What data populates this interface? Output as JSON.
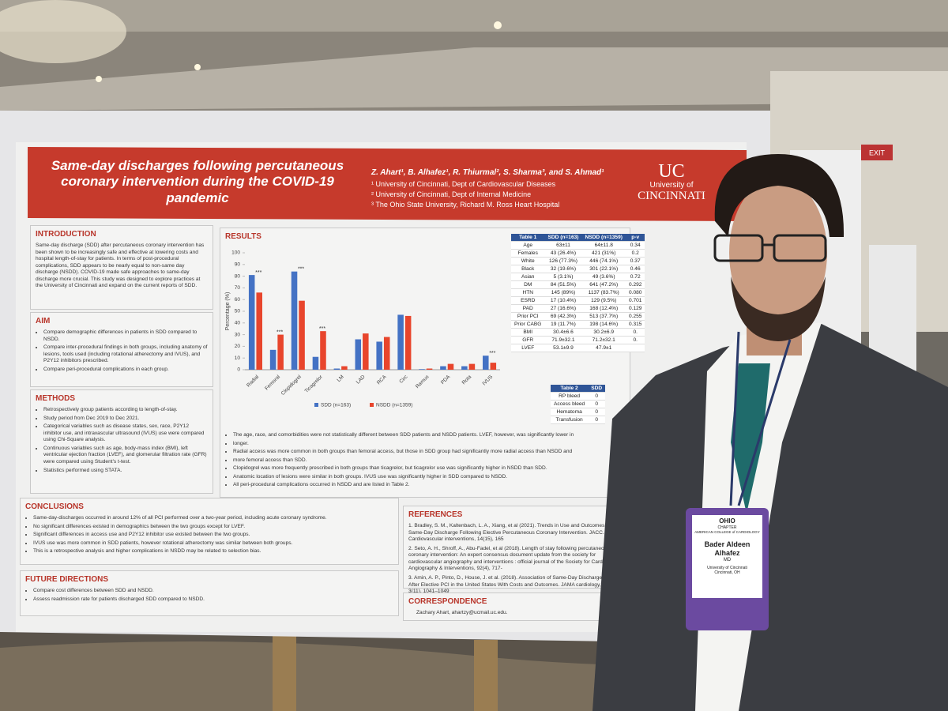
{
  "poster": {
    "header": {
      "title": "Same-day discharges following percutaneous coronary intervention during the COVID-19 pandemic",
      "authors": "Z. Ahart¹, B. Alhafez¹, R. Thiurmal², S. Sharma³, and S. Ahmad¹",
      "affiliations": [
        "¹ University of Cincinnati, Dept of Cardiovascular Diseases",
        "² University of Cincinnati, Dept of Internal Medicine",
        "³ The Ohio State University, Richard M. Ross Heart Hospital"
      ],
      "logo": {
        "mark": "UC",
        "line1": "University of",
        "line2": "CINCINNATI"
      }
    },
    "introduction": {
      "heading": "INTRODUCTION",
      "text": "Same-day discharge (SDD) after percutaneous coronary intervention has been shown to be increasingly safe and effective at lowering costs and hospital length-of-stay for patients. In terms of post-procedural complications, SDD appears to be nearly equal to non-same day discharge (NSDD). COVID-19 made safe approaches to same-day discharge more crucial. This study was designed to explore practices at the University of Cincinnati and expand on the current reports of SDD."
    },
    "aim": {
      "heading": "AIM",
      "items": [
        "Compare demographic differences in patients in SDD compared to NSDD.",
        "Compare inter-procedural findings in both groups, including anatomy of lesions, tools used (including rotational atherectomy and IVUS), and P2Y12 inhibitors prescribed.",
        "Compare peri-procedural complications in each group."
      ]
    },
    "methods": {
      "heading": "METHODS",
      "items": [
        "Retrospectively group patients according to length-of-stay.",
        "Study period from Dec 2019 to Dec 2021.",
        "Categorical variables such as disease states, sex, race, P2Y12 inhibitor use, and intravascular ultrasound (IVUS) use were compared using Chi-Square analysis.",
        "Continuous variables such as age, body-mass index (BMI), left ventricular ejection fraction (LVEF), and glomerular filtration rate (GFR) were compared using Student's t-test.",
        "Statistics performed using STATA."
      ]
    },
    "results": {
      "heading": "RESULTS",
      "chart": {
        "type": "bar",
        "y_label": "Percentage (%)",
        "categories": [
          "Radial",
          "Femoral",
          "Clopidogrel",
          "Ticagrelor",
          "LM",
          "LAD",
          "RCA",
          "Circ",
          "Ramus",
          "PDA",
          "Rota",
          "IVUS"
        ],
        "series": [
          {
            "name": "SDD (n=163)",
            "color": "#4472c4",
            "values": [
              81,
              17,
              84,
              11,
              1,
              26,
              24,
              47,
              0.5,
              3,
              3,
              12
            ]
          },
          {
            "name": "NSDD (n=1359)",
            "color": "#e8452c",
            "values": [
              66,
              30,
              59,
              33,
              3,
              31,
              28,
              46,
              1,
              5,
              5,
              6
            ]
          }
        ],
        "ylim": [
          0,
          100
        ],
        "yticks": [
          0,
          10,
          20,
          30,
          40,
          50,
          60,
          70,
          80,
          90,
          100
        ],
        "annotations": [
          {
            "category": "Radial",
            "text": "***"
          },
          {
            "category": "Femoral",
            "text": "***"
          },
          {
            "category": "Clopidogrel",
            "text": "***"
          },
          {
            "category": "Ticagrelor",
            "text": "***"
          },
          {
            "category": "IVUS",
            "text": "***"
          }
        ]
      },
      "items": [
        "The age, race, and comorbidities were not statistically different between SDD patients and NSDD patients. LVEF, however, was significantly lower in",
        "longer.",
        "Radial access was more common in both groups than femoral access, but those in SDD group had significantly more radial access than NSDD and",
        "more femoral access than SDD.",
        "Clopidogrel was more frequently prescribed in both groups than ticagrelor, but ticagrelor use was significantly higher in NSDD than SDD.",
        "Anatomic location of lesions were similar in both groups. IVUS use was significantly higher in SDD compared to NSDD.",
        "All peri-procedural complications occurred in NSDD and are listed in Table 2."
      ],
      "table1": {
        "header": [
          "Table 1",
          "SDD (n=163)",
          "NSDD (n=1359)",
          "p-v"
        ],
        "rows": [
          [
            "Age",
            "63±11",
            "64±11.8",
            "0.34"
          ],
          [
            "Females",
            "43 (26.4%)",
            "421 (31%)",
            "0.2"
          ],
          [
            "White",
            "126 (77.3%)",
            "446 (74.1%)",
            "0.37"
          ],
          [
            "Black",
            "32 (19.6%)",
            "301 (22.1%)",
            "0.46"
          ],
          [
            "Asian",
            "5 (3.1%)",
            "49 (3.6%)",
            "0.72"
          ],
          [
            "DM",
            "84 (51.5%)",
            "641 (47.2%)",
            "0.292"
          ],
          [
            "HTN",
            "145 (89%)",
            "1137 (83.7%)",
            "0.080"
          ],
          [
            "ESRD",
            "17 (10.4%)",
            "129 (9.5%)",
            "0.701"
          ],
          [
            "PAD",
            "27 (16.6%)",
            "168 (12.4%)",
            "0.129"
          ],
          [
            "Prior PCI",
            "69 (42.3%)",
            "513 (37.7%)",
            "0.255"
          ],
          [
            "Prior CABG",
            "19 (11.7%)",
            "198 (14.6%)",
            "0.315"
          ],
          [
            "BMI",
            "30.4±6.6",
            "30.2±6.9",
            "0."
          ],
          [
            "GFR",
            "71.9±32.1",
            "71.2±32.1",
            "0."
          ],
          [
            "LVEF",
            "53.1±9.9",
            "47.9±1",
            ""
          ]
        ]
      },
      "table2": {
        "header": [
          "Table 2",
          "SDD"
        ],
        "rows": [
          [
            "RP bleed",
            "0"
          ],
          [
            "Access bleed",
            "0"
          ],
          [
            "Hematoma",
            "0"
          ],
          [
            "Transfusion",
            "0"
          ]
        ]
      }
    },
    "conclusions": {
      "heading": "CONCLUSIONS",
      "items": [
        "Same-day-discharges occurred in around 12% of all PCI performed over a two-year period, including acute coronary syndrome.",
        "No significant differences existed in demographics between the two groups except for LVEF.",
        "Significant differences in access use and P2Y12 inhibitor use existed between the two groups.",
        "IVUS use was more common in SDD patients, however rotational atherectomy was similar between both groups.",
        "This is a retrospective analysis and higher complications in NSDD may be related to selection bias."
      ]
    },
    "future": {
      "heading": "FUTURE DIRECTIONS",
      "items": [
        "Compare cost differences between SDD and NSDD.",
        "Assess readmission rate for patients discharged SDD compared to NSDD."
      ]
    },
    "references": {
      "heading": "REFERENCES",
      "items": [
        "1. Bradley, S. M., Kaltenbach, L. A., Xiang, et al (2021). Trends in Use and Outcomes of Same-Day Discharge Following Elective Percutaneous Coronary Intervention. JACC. Cardiovascular interventions, 14(15), 165",
        "2. Seto, A. H., Shroff, A., Abu-Fadel, et al (2018). Length of stay following percutaneous coronary intervention: An expert consensus document update from the society for cardiovascular angiography and interventions : official journal of the Society for Cardiac Angiography & Interventions, 92(4), 717-",
        "3. Amin, A. P., Pinto, D., House, J. et al. (2018). Association of Same-Day Discharge After Elective PCI in the United States With Costs and Outcomes. JAMA cardiology, 3(11), 1041–1049"
      ]
    },
    "correspondence": {
      "heading": "CORRESPONDENCE",
      "text": "Zachary Ahart, ahartzy@ucmail.uc.edu."
    }
  },
  "badge": {
    "chapter": "OHIO",
    "chapter_sub": "CHAPTER",
    "org": "AMERICAN COLLEGE of CARDIOLOGY",
    "name": "Bader Aldeen Alhafez",
    "degree": "MD",
    "affiliation": "University of Cincinnati",
    "city": "Cincinnati, OH"
  },
  "exit_sign": "EXIT"
}
